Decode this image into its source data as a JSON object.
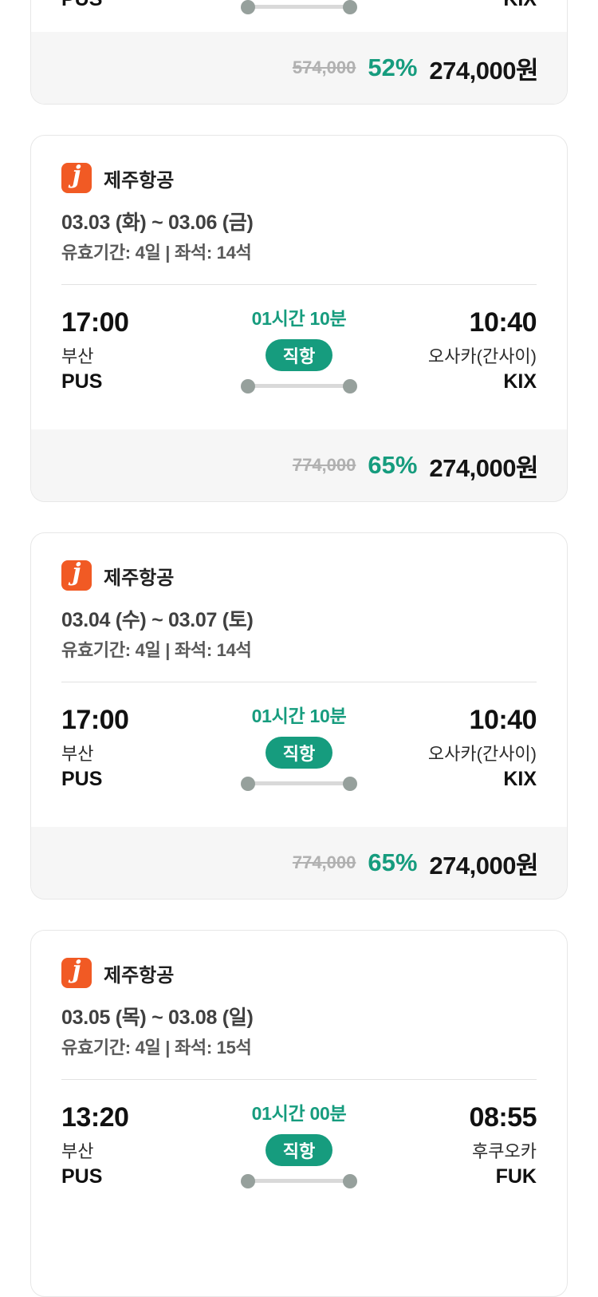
{
  "logo_letter": "j",
  "colors": {
    "green": "#169c7e",
    "orange": "#f15a24"
  },
  "cards": [
    {
      "depart_code": "PUS",
      "arrive_code": "KIX",
      "price_original": "574,000",
      "discount": "52%",
      "price_final": "274,000원"
    },
    {
      "airline": "제주항공",
      "date_range": "03.03 (화) ~ 03.06 (금)",
      "validity_seats": "유효기간: 4일 | 좌석: 14석",
      "depart_time": "17:00",
      "depart_city": "부산",
      "depart_code": "PUS",
      "duration": "01시간 10분",
      "direct_badge": "직항",
      "arrive_time": "10:40",
      "arrive_city": "오사카(간사이)",
      "arrive_code": "KIX",
      "price_original": "774,000",
      "discount": "65%",
      "price_final": "274,000원"
    },
    {
      "airline": "제주항공",
      "date_range": "03.04 (수) ~ 03.07 (토)",
      "validity_seats": "유효기간: 4일 | 좌석: 14석",
      "depart_time": "17:00",
      "depart_city": "부산",
      "depart_code": "PUS",
      "duration": "01시간 10분",
      "direct_badge": "직항",
      "arrive_time": "10:40",
      "arrive_city": "오사카(간사이)",
      "arrive_code": "KIX",
      "price_original": "774,000",
      "discount": "65%",
      "price_final": "274,000원"
    },
    {
      "airline": "제주항공",
      "date_range": "03.05 (목) ~ 03.08 (일)",
      "validity_seats": "유효기간: 4일 | 좌석: 15석",
      "depart_time": "13:20",
      "depart_city": "부산",
      "depart_code": "PUS",
      "duration": "01시간 00분",
      "direct_badge": "직항",
      "arrive_time": "08:55",
      "arrive_city": "후쿠오카",
      "arrive_code": "FUK"
    }
  ]
}
